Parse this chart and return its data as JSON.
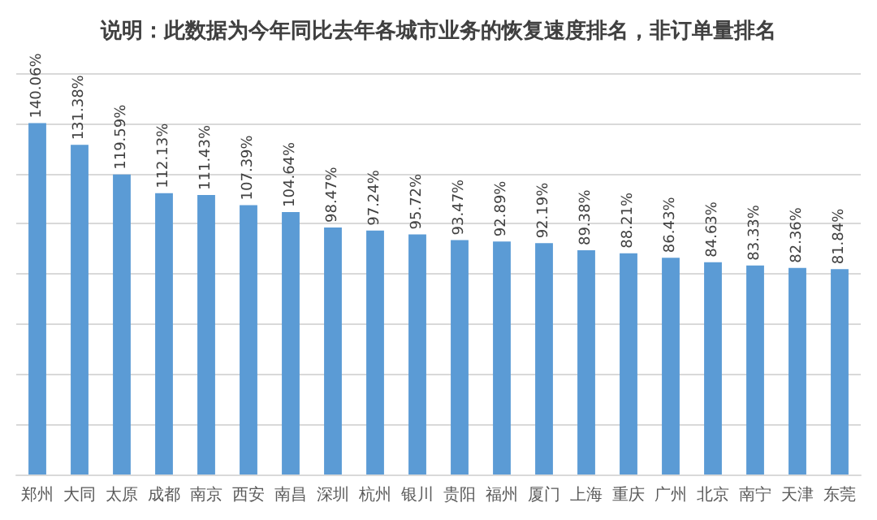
{
  "chart_data": {
    "type": "bar",
    "title": "说明：此数据为今年同比去年各城市业务的恢复速度排名，非订单量排名",
    "categories": [
      "郑州",
      "大同",
      "太原",
      "成都",
      "南京",
      "西安",
      "南昌",
      "深圳",
      "杭州",
      "银川",
      "贵阳",
      "福州",
      "厦门",
      "上海",
      "重庆",
      "广州",
      "北京",
      "南宁",
      "天津",
      "东莞"
    ],
    "values": [
      140.06,
      131.38,
      119.59,
      112.13,
      111.43,
      107.39,
      104.64,
      98.47,
      97.24,
      95.72,
      93.47,
      92.89,
      92.19,
      89.38,
      88.21,
      86.43,
      84.63,
      83.33,
      82.36,
      81.84
    ],
    "value_labels": [
      "140.06%",
      "131.38%",
      "119.59%",
      "112.13%",
      "111.43%",
      "107.39%",
      "104.64%",
      "98.47%",
      "97.24%",
      "95.72%",
      "93.47%",
      "92.89%",
      "92.19%",
      "89.38%",
      "88.21%",
      "86.43%",
      "84.63%",
      "83.33%",
      "82.36%",
      "81.84%"
    ],
    "color": "#5b9bd5",
    "ylim": [
      0,
      160
    ],
    "yticks": [
      {
        "value": 0,
        "label": null
      },
      {
        "value": 20,
        "label": null
      },
      {
        "value": 40,
        "label": null
      },
      {
        "value": 60,
        "label": null
      },
      {
        "value": 80,
        "label": null
      },
      {
        "value": 100,
        "label": null
      },
      {
        "value": 120,
        "label": null
      },
      {
        "value": 140,
        "label": null
      },
      {
        "value": 160,
        "label": null
      }
    ],
    "tick_labels": "x",
    "grid": "y"
  }
}
